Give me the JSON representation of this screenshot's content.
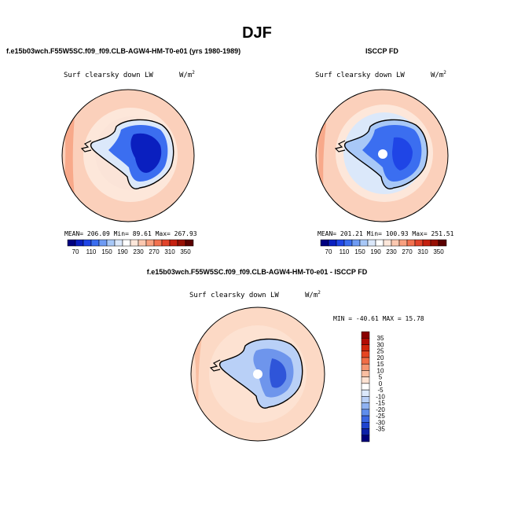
{
  "season_title": "DJF",
  "panels": [
    {
      "title": "f.e15b03wch.F55W5SC.f09_f09.CLB-AGW4-HM-T0-e01 (yrs 1980-1989)",
      "variable": "Surf clearsky down LW",
      "units_base": "W/m",
      "units_exp": "2",
      "stats": "MEAN= 206.09   Min=  89.61   Max= 267.93"
    },
    {
      "title": "ISCCP FD",
      "variable": "Surf clearsky down LW",
      "units_base": "W/m",
      "units_exp": "2",
      "stats": "MEAN= 201.21   Min= 100.93   Max= 251.51"
    },
    {
      "title": "f.e15b03wch.F55W5SC.f09_f09.CLB-AGW4-HM-T0-e01 - ISCCP FD",
      "variable": "Surf clearsky down LW",
      "units_base": "W/m",
      "units_exp": "2",
      "stats": "MIN = -40.61  MAX =  15.78"
    }
  ],
  "colorbar_abs": {
    "labels": [
      "70",
      "110",
      "150",
      "190",
      "230",
      "270",
      "310",
      "350"
    ],
    "colors": [
      "#00007f",
      "#0a1fbf",
      "#1f45e6",
      "#3b6ef0",
      "#6e9bf3",
      "#a8c8f7",
      "#dbe8fa",
      "#ffffff",
      "#fde7da",
      "#fbc8b0",
      "#f8a07f",
      "#f2714f",
      "#e1432a",
      "#c4200f",
      "#971004",
      "#5a0000"
    ]
  },
  "colorbar_diff": {
    "labels": [
      "35",
      "30",
      "25",
      "20",
      "15",
      "10",
      "5",
      "0",
      "-5",
      "-10",
      "-15",
      "-20",
      "-25",
      "-30",
      "-35"
    ],
    "colors": [
      "#8a0000",
      "#b20c04",
      "#d0250c",
      "#e64522",
      "#f16d46",
      "#f59672",
      "#f9bea1",
      "#fde2d2",
      "#ffffff",
      "#dce9fb",
      "#b9d0f7",
      "#8fb2f2",
      "#5f8dec",
      "#3a66e3",
      "#1e43cf",
      "#0d21a8",
      "#00007a"
    ]
  },
  "map_colors": {
    "ocean_warm_abs": "#f8a98a",
    "ocean_mid_abs": "#fbd0bb",
    "ocean_cool_abs": "#fde7da",
    "ice_edge_abs": "#dbe8fa",
    "ice_mid_abs": "#3b6ef0",
    "ice_deep_abs": "#0a1fbf",
    "diff_ocean": "#fcd9c5",
    "diff_ocean_light": "#fde7da",
    "diff_ice_light": "#b9d0f7",
    "diff_ice_mid": "#6e95ec",
    "diff_ice_deep": "#2f55d9"
  }
}
